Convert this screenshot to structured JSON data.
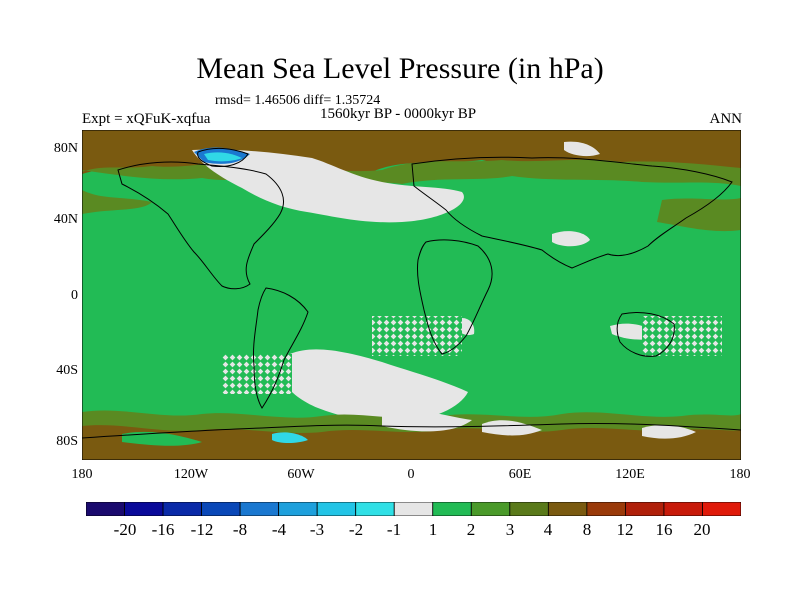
{
  "title": "Mean Sea Level Pressure (in hPa)",
  "stats": "rmsd= 1.46506 diff= 1.35724",
  "period": "1560kyr BP - 0000kyr BP",
  "experiment": "Expt = xQFuK-xqfua",
  "season": "ANN",
  "lat_labels": [
    "80N",
    "40N",
    "0",
    "40S",
    "80S"
  ],
  "lon_labels": [
    "180",
    "120W",
    "60W",
    "0",
    "60E",
    "120E",
    "180"
  ],
  "colorbar": {
    "labels": [
      "-20",
      "-16",
      "-12",
      "-8",
      "-4",
      "-3",
      "-2",
      "-1",
      "1",
      "2",
      "3",
      "4",
      "8",
      "12",
      "16",
      "20"
    ],
    "colors": [
      "#1a0a6e",
      "#0a0a9a",
      "#0a2aa8",
      "#0a48b8",
      "#1a78d0",
      "#1ea0dc",
      "#22c4e6",
      "#30e0e6",
      "#e6e6e6",
      "#22bb55",
      "#4a9a2a",
      "#5a7a1a",
      "#7a5a10",
      "#9a3a0a",
      "#b0200a",
      "#c81a0a",
      "#e01a0a"
    ]
  },
  "colors": {
    "base": "#22bb55",
    "light": "#e6e6e6",
    "olive": "#5a8a22",
    "brown": "#7a5a10",
    "cyan": "#30d8e6",
    "blue": "#1a78d0"
  }
}
